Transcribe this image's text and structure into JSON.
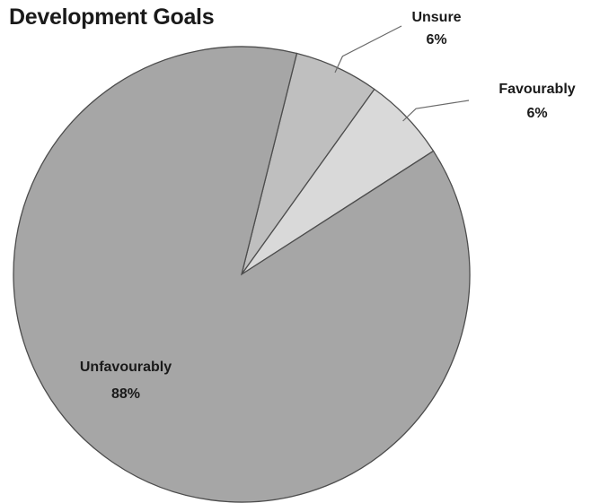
{
  "chart_data": {
    "type": "pie",
    "title": "Development Goals",
    "slices": [
      {
        "label": "Unsure",
        "value": 6,
        "value_label": "6%",
        "color": "#bfbfbf"
      },
      {
        "label": "Favourably",
        "value": 6,
        "value_label": "6%",
        "color": "#d9d9d9"
      },
      {
        "label": "Unfavourably",
        "value": 88,
        "value_label": "88%",
        "color": "#a6a6a6"
      }
    ],
    "start": "top",
    "direction": "clockwise",
    "legend": "none",
    "label_placement": {
      "Unsure": "outside-leader",
      "Favourably": "outside-leader",
      "Unfavourably": "inside"
    }
  }
}
